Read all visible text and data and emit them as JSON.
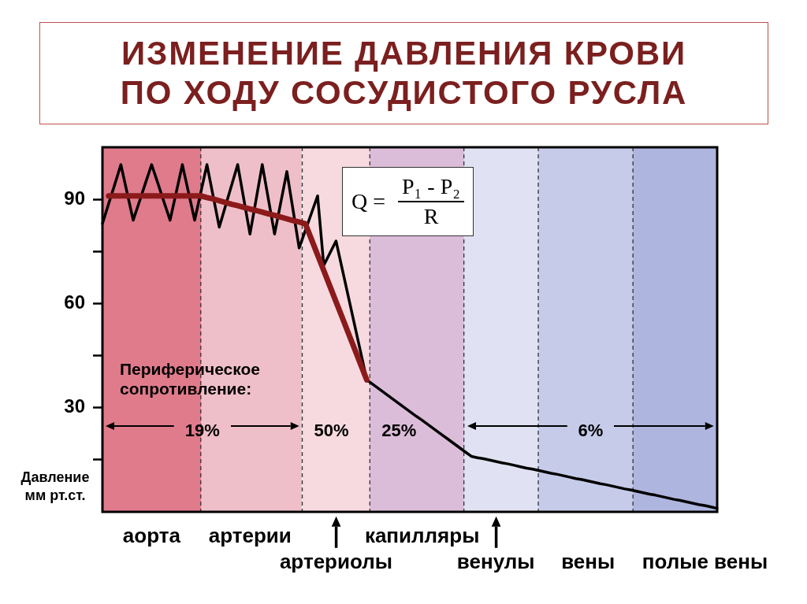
{
  "chart_data": {
    "type": "line",
    "title": "ИЗМЕНЕНИЕ ДАВЛЕНИЯ КРОВИ ПО ХОДУ СОСУДИСТОГО РУСЛА",
    "ylabel": "Давление мм рт.ст.",
    "annotations": [
      "Периферическое сопротивление:",
      "19%",
      "50%",
      "25%",
      "6%",
      "Q =",
      "P₁ - P₂",
      "R"
    ],
    "categories": [
      null,
      null,
      null,
      null,
      null,
      null,
      null,
      null,
      "аорта",
      null,
      null,
      null,
      null,
      null,
      null,
      null,
      null,
      null,
      null,
      null,
      null,
      null,
      null,
      null,
      "артерии",
      null,
      null,
      null,
      null,
      null,
      null,
      null,
      null,
      null,
      null,
      null,
      null,
      null,
      "артериолы",
      null,
      null,
      null,
      null,
      null,
      null,
      null,
      null,
      null,
      null,
      null,
      null,
      null,
      "капилляры",
      null,
      null,
      null,
      null,
      null,
      null,
      null,
      null,
      null,
      null,
      null,
      "венулы",
      null,
      null,
      null,
      null,
      null,
      null,
      null,
      null,
      null,
      null,
      null,
      null,
      null,
      null,
      "вены",
      null,
      null,
      null,
      null,
      null,
      null,
      null,
      null,
      null,
      null,
      null,
      null,
      null,
      null,
      null,
      null,
      null,
      null,
      "полые вены",
      null,
      null
    ],
    "ylim": [
      0,
      105
    ],
    "yticks": [
      {
        "value": 15,
        "label": null
      },
      30,
      {
        "value": 45,
        "label": null
      },
      60,
      {
        "value": 75,
        "label": null
      },
      90
    ],
    "grid": false,
    "legend": false,
    "series": [
      {
        "color": "#000000",
        "values": [
          83,
          88.7,
          94.3,
          100,
          92,
          84,
          89.3,
          94.7,
          100,
          94.7,
          89.3,
          84,
          92,
          100,
          92,
          84,
          92,
          100,
          91,
          82,
          88,
          94,
          100,
          90,
          80,
          90,
          100,
          90,
          80,
          89,
          98,
          87,
          76,
          81,
          86,
          91,
          71,
          74.5,
          78,
          70,
          62,
          54,
          46,
          38,
          36.7,
          35.4,
          34.1,
          32.8,
          31.5,
          30.2,
          28.9,
          27.6,
          26.4,
          25.1,
          23.8,
          22.5,
          21.2,
          19.9,
          18.6,
          17.3,
          16,
          15.6,
          15.3,
          14.9,
          14.5,
          14.1,
          13.8,
          13.4,
          13,
          12.6,
          12.3,
          11.9,
          11.5,
          11.1,
          10.8,
          10.4,
          10,
          9.6,
          9.3,
          8.9,
          8.5,
          8.1,
          7.8,
          7.4,
          7,
          6.6,
          6.3,
          5.9,
          5.5,
          5.1,
          4.8,
          4.4,
          4,
          3.6,
          3.3,
          2.9,
          2.5,
          2.1,
          1.8,
          1.4,
          1
        ]
      },
      {
        "color": "#8b1a1a",
        "values": [
          null,
          91,
          91,
          91,
          91,
          91,
          91,
          91,
          91,
          91,
          91,
          91,
          91,
          91,
          91,
          91,
          91,
          90.5,
          90.1,
          89.6,
          89.1,
          88.6,
          88.2,
          87.7,
          87.2,
          86.8,
          86.3,
          85.8,
          85.4,
          84.9,
          84.4,
          83.9,
          83.5,
          83,
          78.5,
          74,
          69.5,
          65,
          60.5,
          56,
          51.5,
          47,
          42.5,
          38,
          null,
          null,
          null,
          null,
          null,
          null,
          null,
          null,
          null,
          null,
          null,
          null,
          null,
          null,
          null,
          null,
          null,
          null,
          null,
          null,
          null,
          null,
          null,
          null,
          null,
          null,
          null,
          null,
          null,
          null,
          null,
          null,
          null,
          null,
          null,
          null,
          null,
          null,
          null,
          null,
          null,
          null,
          null,
          null,
          null,
          null,
          null,
          null,
          null,
          null,
          null,
          null,
          null,
          null,
          null,
          null,
          null
        ]
      }
    ]
  }
}
